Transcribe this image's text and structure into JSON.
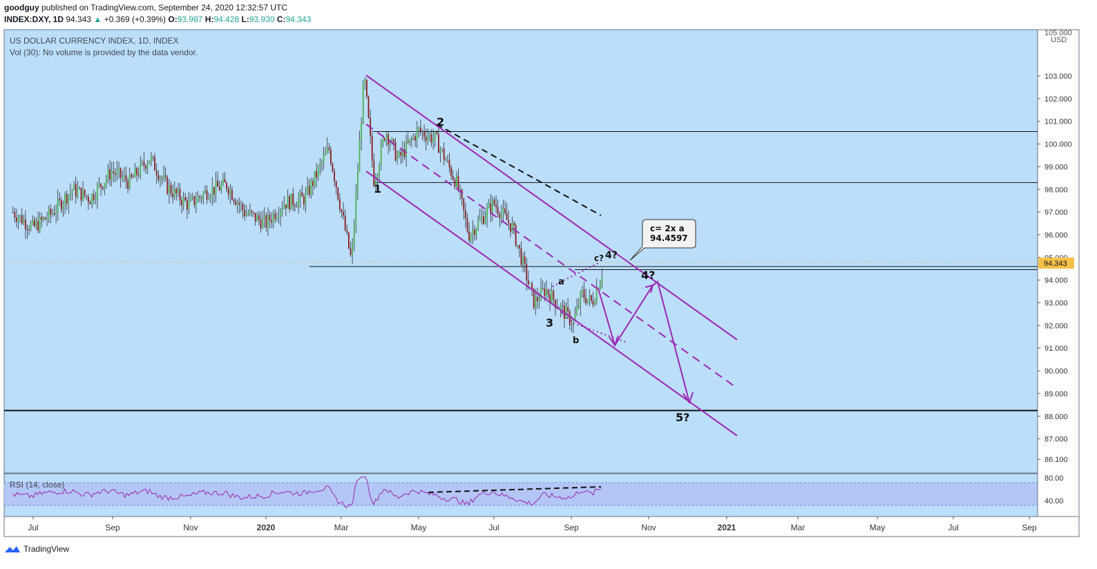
{
  "header": {
    "user": "goodguy",
    "published": "published on TradingView.com, September 24, 2020 12:32:57 UTC",
    "symbol": "INDEX:DXY, 1D",
    "last": "94.343",
    "change": "+0.369 (+0.39%)",
    "o_label": "O:",
    "o": "93.987",
    "h_label": "H:",
    "h": "94.428",
    "l_label": "L:",
    "l": "93.930",
    "c_label": "C:",
    "c": "94.343"
  },
  "legend": {
    "title": "US DOLLAR CURRENCY INDEX, 1D, INDEX",
    "volume_note": "Vol (30): No volume is provided by the data vendor.",
    "rsi_label": "RSI (14, close)"
  },
  "footer": {
    "brand": "TradingView"
  },
  "colors": {
    "plot_bg": "#bbdefb",
    "rsi_band": "#b3c3f5",
    "drawing": "#9c27b0",
    "up_candle": "#4caf50",
    "down_candle": "#8b1a1a",
    "last_price_tag": "#f5c04a"
  },
  "chart_data": {
    "type": "candlestick",
    "title": "US DOLLAR CURRENCY INDEX, 1D, INDEX",
    "y_currency": "USD",
    "y_ticks": [
      "103.000",
      "102.000",
      "101.000",
      "100.000",
      "99.000",
      "98.000",
      "97.000",
      "96.000",
      "95.000",
      "94.000",
      "93.000",
      "92.000",
      "91.000",
      "90.000",
      "89.000",
      "88.000",
      "87.000",
      "86.100"
    ],
    "y_top_label": "105.000",
    "x_ticks": [
      "Jul",
      "Sep",
      "Nov",
      "2020",
      "Mar",
      "May",
      "Jul",
      "Sep",
      "Nov",
      "2021",
      "Mar",
      "May",
      "Jul",
      "Sep"
    ],
    "last_price": "94.343",
    "price_path": [
      [
        "2019-06-15",
        97.0
      ],
      [
        "2019-07-01",
        96.3
      ],
      [
        "2019-07-15",
        96.9
      ],
      [
        "2019-08-01",
        98.0
      ],
      [
        "2019-08-15",
        97.6
      ],
      [
        "2019-09-01",
        98.8
      ],
      [
        "2019-09-15",
        98.3
      ],
      [
        "2019-10-01",
        99.4
      ],
      [
        "2019-10-15",
        98.1
      ],
      [
        "2019-11-01",
        97.3
      ],
      [
        "2019-11-15",
        97.9
      ],
      [
        "2019-12-01",
        98.2
      ],
      [
        "2019-12-15",
        97.0
      ],
      [
        "2020-01-01",
        96.5
      ],
      [
        "2020-01-15",
        97.4
      ],
      [
        "2020-02-01",
        97.6
      ],
      [
        "2020-02-20",
        99.8
      ],
      [
        "2020-03-09",
        94.8
      ],
      [
        "2020-03-19",
        103.0
      ],
      [
        "2020-03-27",
        98.3
      ],
      [
        "2020-04-05",
        100.6
      ],
      [
        "2020-04-15",
        99.3
      ],
      [
        "2020-05-01",
        100.6
      ],
      [
        "2020-05-15",
        100.2
      ],
      [
        "2020-06-01",
        98.2
      ],
      [
        "2020-06-10",
        96.0
      ],
      [
        "2020-06-30",
        97.4
      ],
      [
        "2020-07-15",
        96.3
      ],
      [
        "2020-08-01",
        93.0
      ],
      [
        "2020-08-10",
        93.6
      ],
      [
        "2020-08-20",
        92.9
      ],
      [
        "2020-09-01",
        92.1
      ],
      [
        "2020-09-08",
        93.4
      ],
      [
        "2020-09-16",
        93.0
      ],
      [
        "2020-09-24",
        94.34
      ]
    ],
    "horizontal_levels": [
      100.55,
      98.3,
      94.6,
      94.46,
      88.25
    ],
    "rsi": {
      "label": "RSI (14, close)",
      "ticks": [
        "80.00",
        "40.00"
      ],
      "band": [
        30,
        70
      ]
    },
    "annotations": {
      "wave_labels": [
        "1",
        "2",
        "3",
        "4?",
        "5?",
        "a",
        "b",
        "c?",
        "4?"
      ],
      "callout": [
        "c= 2x a",
        "94.4597"
      ]
    }
  }
}
